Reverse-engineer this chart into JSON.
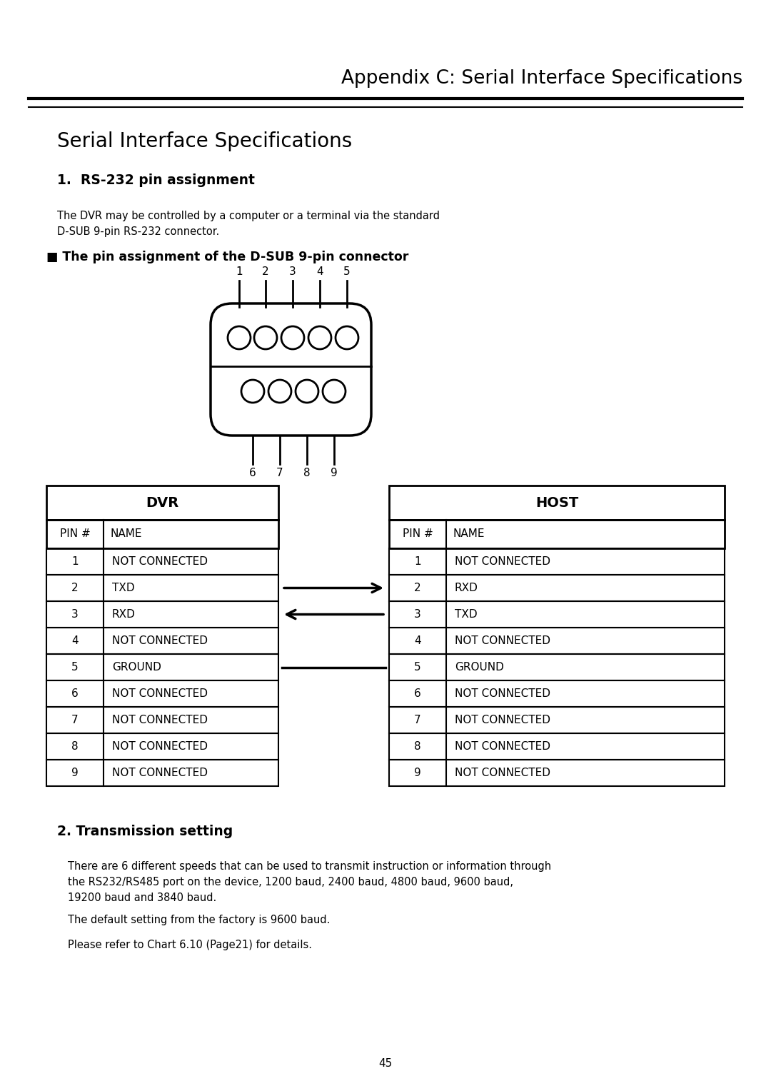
{
  "header_title": "Appendix C: Serial Interface Specifications",
  "section_title": "Serial Interface Specifications",
  "section1_title": "1.  RS-232 pin assignment",
  "para1": "The DVR may be controlled by a computer or a terminal via the standard\nD-SUB 9-pin RS-232 connector.",
  "connector_label": "■ The pin assignment of the D-SUB 9-pin connector",
  "pin_top_labels": [
    "1",
    "2",
    "3",
    "4",
    "5"
  ],
  "pin_bot_labels": [
    "6",
    "7",
    "8",
    "9"
  ],
  "dvr_header": "DVR",
  "host_header": "HOST",
  "dvr_rows": [
    [
      "1",
      "NOT CONNECTED"
    ],
    [
      "2",
      "TXD"
    ],
    [
      "3",
      "RXD"
    ],
    [
      "4",
      "NOT CONNECTED"
    ],
    [
      "5",
      "GROUND"
    ],
    [
      "6",
      "NOT CONNECTED"
    ],
    [
      "7",
      "NOT CONNECTED"
    ],
    [
      "8",
      "NOT CONNECTED"
    ],
    [
      "9",
      "NOT CONNECTED"
    ]
  ],
  "host_rows": [
    [
      "1",
      "NOT CONNECTED"
    ],
    [
      "2",
      "RXD"
    ],
    [
      "3",
      "TXD"
    ],
    [
      "4",
      "NOT CONNECTED"
    ],
    [
      "5",
      "GROUND"
    ],
    [
      "6",
      "NOT CONNECTED"
    ],
    [
      "7",
      "NOT CONNECTED"
    ],
    [
      "8",
      "NOT CONNECTED"
    ],
    [
      "9",
      "NOT CONNECTED"
    ]
  ],
  "section2_title": "2. Transmission setting",
  "para2": "There are 6 different speeds that can be used to transmit instruction or information through\nthe RS232/RS485 port on the device, 1200 baud, 2400 baud, 4800 baud, 9600 baud,\n19200 baud and 3840 baud.",
  "para3": "The default setting from the factory is 9600 baud.",
  "para4": "Please refer to Chart 6.10 (Page21) for details.",
  "page_number": "45",
  "bg_color": "#ffffff",
  "text_color": "#000000"
}
